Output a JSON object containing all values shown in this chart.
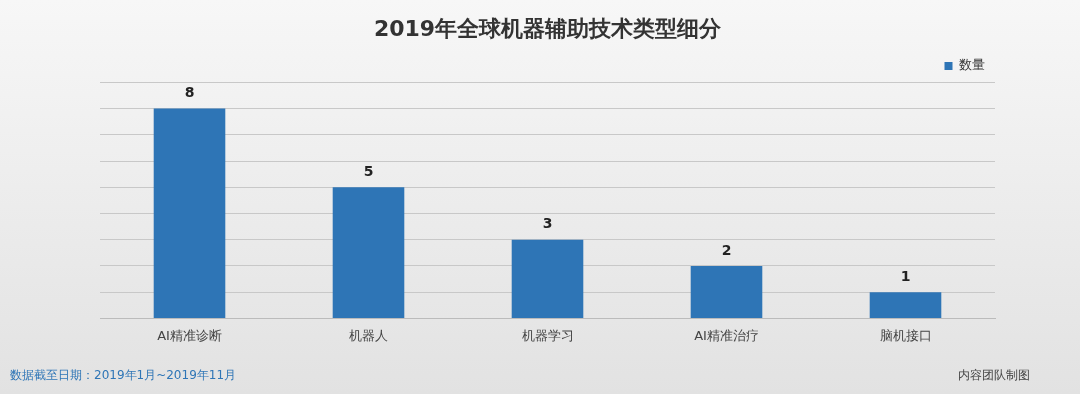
{
  "chart_data": {
    "type": "bar",
    "title": "2019年全球机器辅助技术类型细分",
    "categories": [
      "AI精准诊断",
      "机器人",
      "机器学习",
      "AI精准治疗",
      "脑机接口"
    ],
    "series": [
      {
        "name": "数量",
        "color": "#2e75b6",
        "values": [
          8,
          5,
          3,
          2,
          1
        ]
      }
    ],
    "ylim": [
      0,
      9
    ],
    "yticks": [
      {
        "value": 0,
        "label": null
      },
      {
        "value": 1,
        "label": null
      },
      {
        "value": 2,
        "label": null
      },
      {
        "value": 3,
        "label": null
      },
      {
        "value": 4,
        "label": null
      },
      {
        "value": 5,
        "label": null
      },
      {
        "value": 6,
        "label": null
      },
      {
        "value": 7,
        "label": null
      },
      {
        "value": 8,
        "label": null
      },
      {
        "value": 9,
        "label": null
      }
    ],
    "tick_labels": "x",
    "grid": "y",
    "legend": "top right",
    "data_labels": true,
    "annotations": [
      "数据截至日期：2019年1月~2019年11月",
      "内容团队制图"
    ]
  }
}
